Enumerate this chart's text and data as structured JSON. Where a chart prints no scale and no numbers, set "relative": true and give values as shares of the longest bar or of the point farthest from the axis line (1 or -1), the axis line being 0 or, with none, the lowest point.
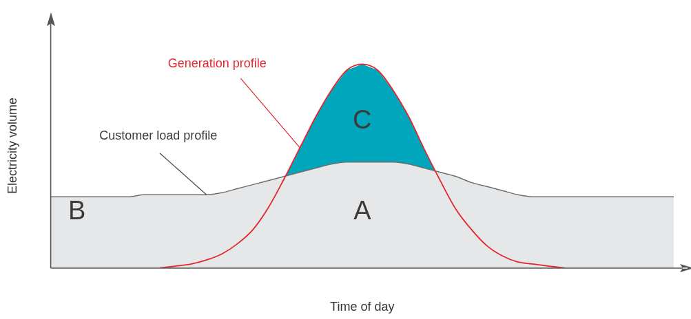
{
  "chart_data": {
    "type": "area",
    "relative": true,
    "xlabel": "Time of day",
    "ylabel": "Electricity volume",
    "categories": [
      null,
      null,
      null,
      null,
      null,
      null,
      null,
      null,
      null,
      null,
      null,
      null,
      null,
      null,
      null,
      null,
      null,
      null,
      null,
      null,
      null,
      null,
      null,
      null,
      null,
      null,
      null,
      null,
      null,
      null,
      null,
      null,
      null,
      null,
      null,
      null,
      null,
      null,
      null,
      null,
      null
    ],
    "series": [
      {
        "name": "Customer load profile",
        "type": "area",
        "color": "#e6e7e8",
        "values": [
          0.35,
          0.35,
          0.35,
          0.35,
          0.35,
          0.35,
          0.36,
          0.36,
          0.36,
          0.36,
          0.36,
          0.37,
          0.39,
          0.41,
          0.43,
          0.45,
          0.47,
          0.49,
          0.51,
          0.52,
          0.52,
          0.52,
          0.52,
          0.51,
          0.49,
          0.47,
          0.45,
          0.42,
          0.4,
          0.38,
          0.36,
          0.35,
          0.35,
          0.35,
          0.35,
          0.35,
          0.35,
          0.35,
          0.35,
          0.35,
          0.35
        ]
      },
      {
        "name": "Generation profile",
        "type": "line",
        "color": "#e3262d",
        "values": [
          null,
          null,
          null,
          null,
          null,
          null,
          null,
          0,
          0.01,
          0.02,
          0.04,
          0.07,
          0.12,
          0.19,
          0.3,
          0.44,
          0.59,
          0.74,
          0.87,
          0.97,
          1,
          0.97,
          0.87,
          0.74,
          0.58,
          0.43,
          0.29,
          0.19,
          0.11,
          0.06,
          0.03,
          0.02,
          0.01,
          0,
          null,
          null,
          null,
          null,
          null,
          null,
          null
        ]
      }
    ],
    "annotations": [
      "A",
      "B",
      "C"
    ],
    "grid": false,
    "legend": false,
    "marker": "none",
    "line_style": "solid"
  }
}
